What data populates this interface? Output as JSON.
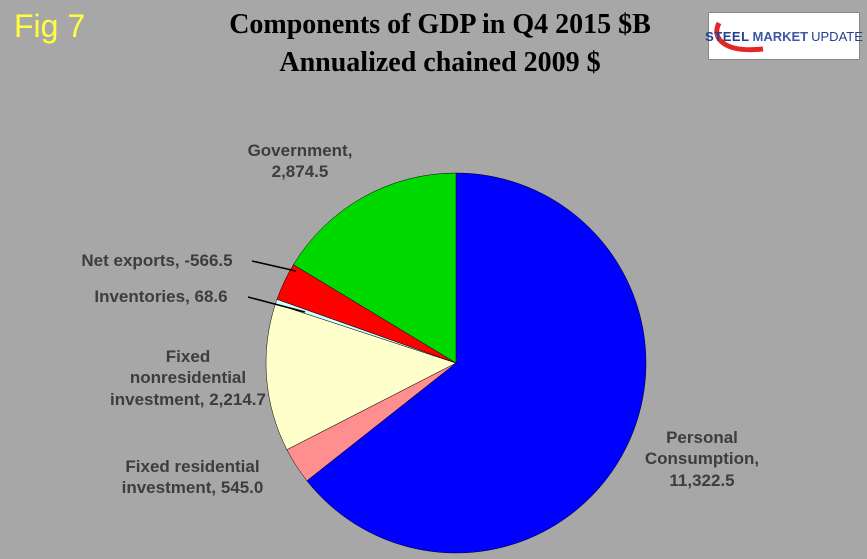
{
  "fig_label": "Fig 7",
  "title": {
    "line1": "Components of GDP in Q4 2015 $B",
    "line2": "Annualized chained 2009 $"
  },
  "logo": {
    "word1": "STEEL",
    "word2": "MARKET",
    "word3": "UPDATE"
  },
  "labels": {
    "government": {
      "line1": "Government,",
      "line2": "2,874.5"
    },
    "net_exports": {
      "line1": "Net exports, -566.5"
    },
    "inventories": {
      "line1": "Inventories, 68.6"
    },
    "fixed_nonres": {
      "line1": "Fixed",
      "line2": "nonresidential",
      "line3": "investment, 2,214.7"
    },
    "fixed_res": {
      "line1": "Fixed residential",
      "line2": "investment, 545.0"
    },
    "personal": {
      "line1": "Personal",
      "line2": "Consumption,",
      "line3": "11,322.5"
    }
  },
  "colors": {
    "background": "#a7a7a7",
    "fig_label": "#ffff3c",
    "label_text": "#3d3d3d"
  },
  "chart_data": {
    "type": "pie",
    "title": "Components of GDP in Q4 2015 $B",
    "subtitle": "Annualized chained 2009 $",
    "start_angle_deg": 0,
    "direction": "clockwise",
    "legend": "none",
    "note": "Slice sizes use absolute values; Net exports is negative.",
    "slices": [
      {
        "label": "Personal Consumption",
        "value": 11322.5,
        "color": "#0000fe"
      },
      {
        "label": "Fixed residential investment",
        "value": 545.0,
        "color": "#ff8f8f"
      },
      {
        "label": "Fixed nonresidential investment",
        "value": 2214.7,
        "color": "#ffffcc"
      },
      {
        "label": "Inventories",
        "value": 68.6,
        "color": "#ccffff"
      },
      {
        "label": "Net exports",
        "value": -566.5,
        "color": "#fe0000"
      },
      {
        "label": "Government",
        "value": 2874.5,
        "color": "#00d900"
      }
    ]
  }
}
